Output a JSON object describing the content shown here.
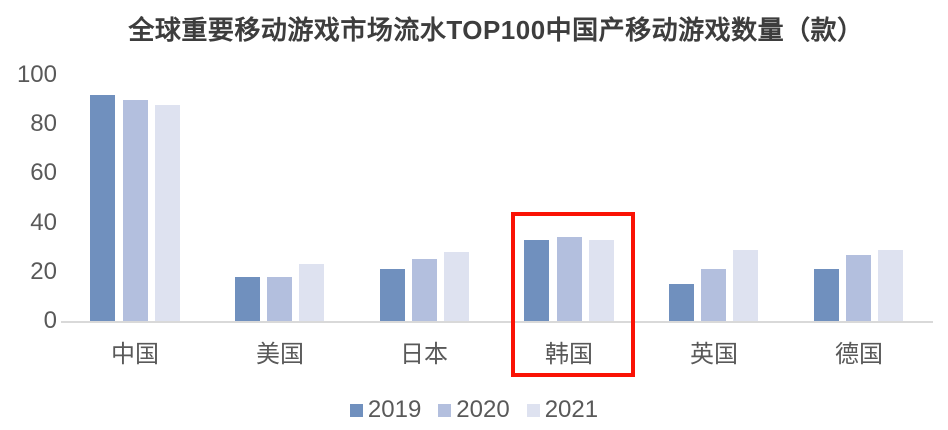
{
  "title": "全球重要移动游戏市场流水TOP100中国产移动游戏数量（款）",
  "colors": {
    "series_2019": "#7090be",
    "series_2020": "#b3bfde",
    "series_2021": "#dee2f0",
    "axis_line": "#d9d9d9",
    "label_text": "#595959",
    "title_text": "#3d3d3d",
    "highlight_red": "#fa1205",
    "background": "#ffffff"
  },
  "chart_data": {
    "type": "bar",
    "title": "全球重要移动游戏市场流水TOP100中国产移动游戏数量（款）",
    "categories": [
      "中国",
      "美国",
      "日本",
      "韩国",
      "英国",
      "德国"
    ],
    "series": [
      {
        "name": "2019",
        "color": "#7090be",
        "values": [
          92,
          18,
          21,
          33,
          15,
          21
        ]
      },
      {
        "name": "2020",
        "color": "#b3bfde",
        "values": [
          90,
          18,
          25,
          34,
          21,
          27
        ]
      },
      {
        "name": "2021",
        "color": "#dee2f0",
        "values": [
          88,
          23,
          28,
          33,
          29,
          29
        ]
      }
    ],
    "xlabel": "",
    "ylabel": "",
    "ylim": [
      0,
      100
    ],
    "yticks": [
      0,
      20,
      40,
      60,
      80,
      100
    ],
    "grid": false,
    "legend_position": "bottom",
    "annotations": [
      {
        "type": "highlight-rectangle",
        "target_category": "韩国",
        "color": "#fa1205"
      }
    ]
  }
}
